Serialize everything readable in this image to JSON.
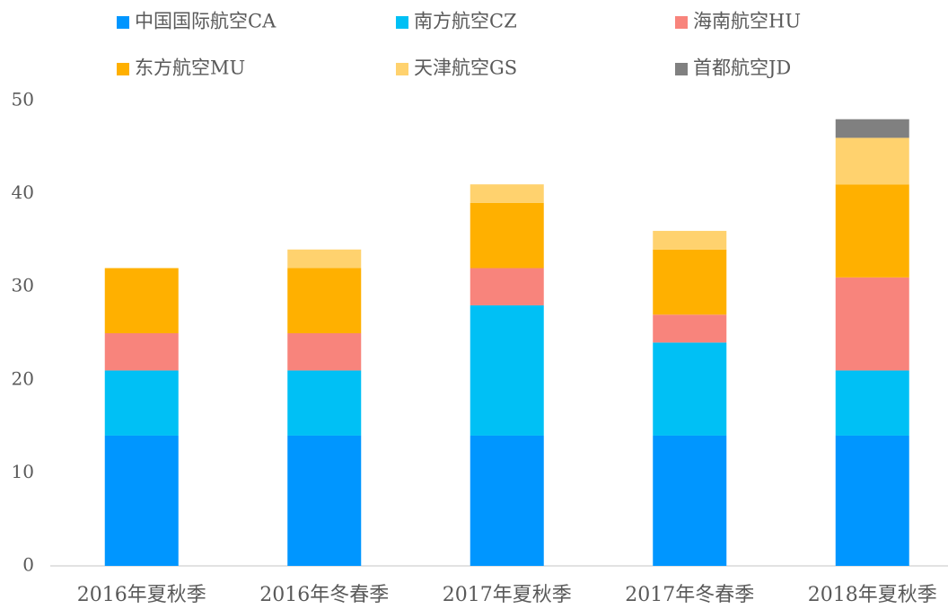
{
  "chart_data": {
    "type": "stacked_bar",
    "categories": [
      "2016年夏秋季",
      "2016年冬春季",
      "2017年夏秋季",
      "2017年冬春季",
      "2018年夏秋季"
    ],
    "series": [
      {
        "name": "中国国际航空CA",
        "color": "#0096ff",
        "values": [
          14,
          14,
          14,
          14,
          14
        ]
      },
      {
        "name": "南方航空CZ",
        "color": "#00c0f5",
        "values": [
          7,
          7,
          14,
          10,
          7
        ]
      },
      {
        "name": "海南航空HU",
        "color": "#f8847c",
        "values": [
          4,
          4,
          4,
          3,
          10
        ]
      },
      {
        "name": "东方航空MU",
        "color": "#ffb000",
        "values": [
          7,
          7,
          7,
          7,
          10
        ]
      },
      {
        "name": "天津航空GS",
        "color": "#ffd26e",
        "values": [
          0,
          2,
          2,
          2,
          5
        ]
      },
      {
        "name": "首都航空JD",
        "color": "#808080",
        "values": [
          0,
          0,
          0,
          0,
          2
        ]
      }
    ],
    "ylim": [
      0,
      50
    ],
    "yticks": [
      0,
      10,
      20,
      30,
      40,
      50
    ],
    "grid": false
  }
}
